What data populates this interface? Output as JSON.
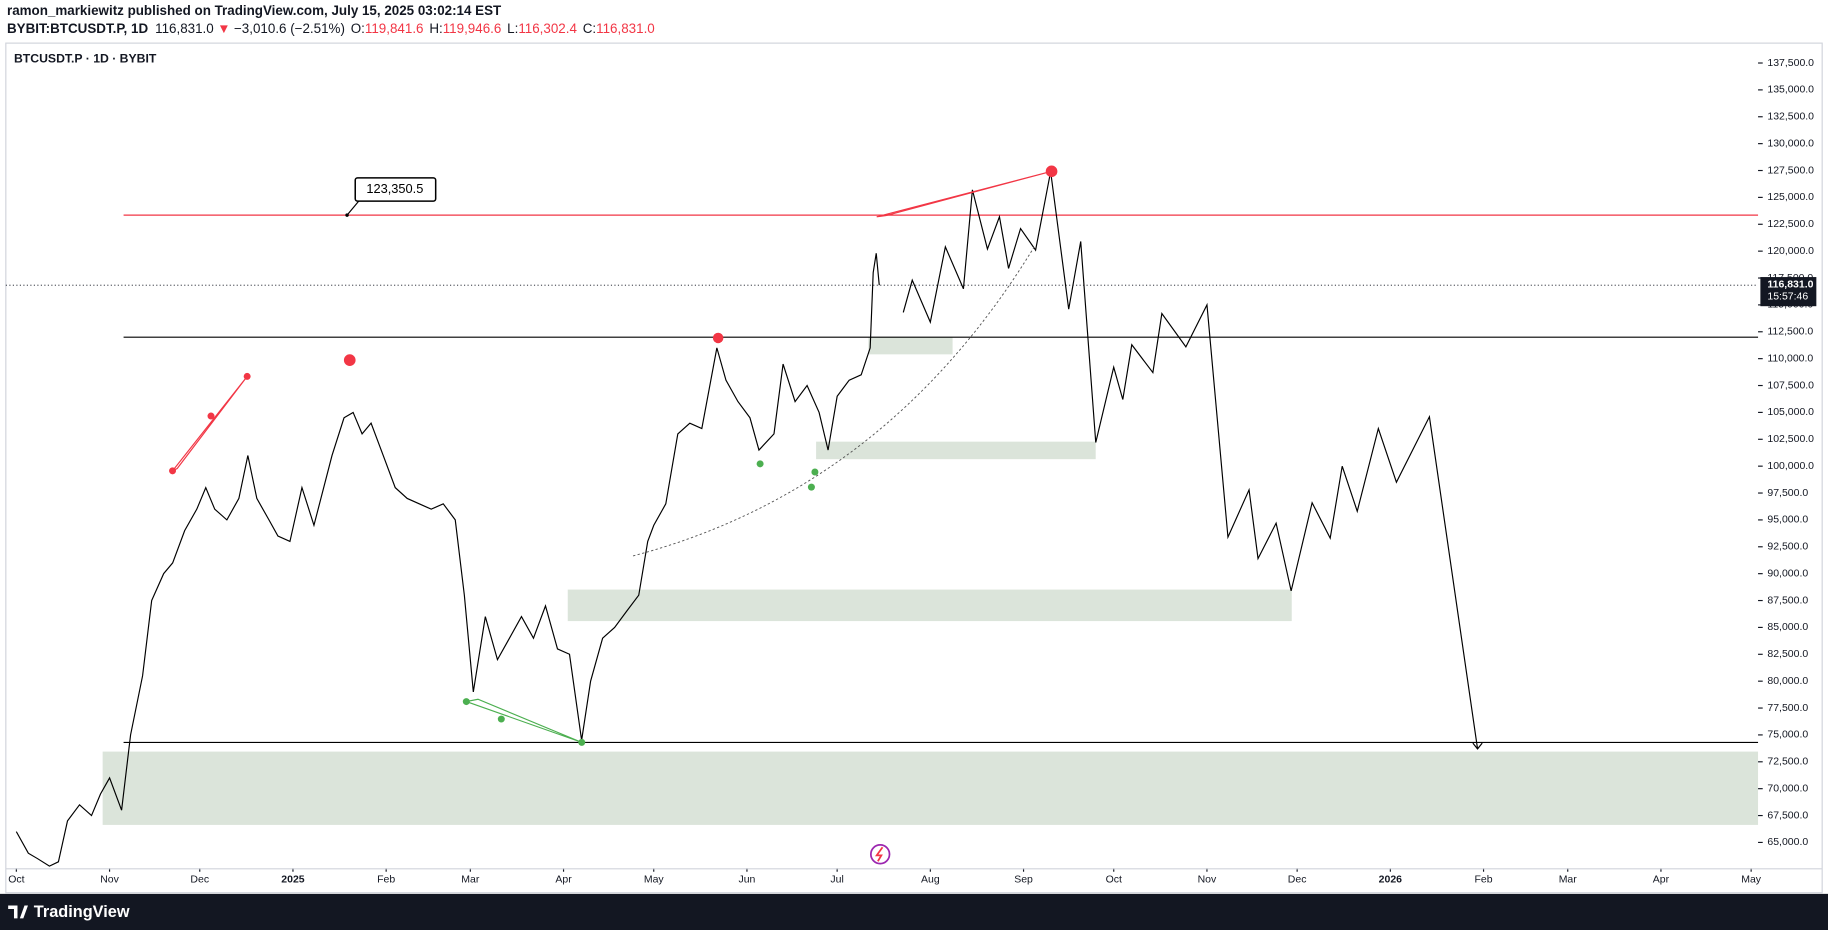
{
  "header": {
    "publisher": "ramon_markiewitz published on TradingView.com, July 15, 2025 03:02:14 EST",
    "symbol": "BYBIT:BTCUSDT.P, 1D",
    "price": "116,831.0",
    "arrow": "▼",
    "change": "−3,010.6 (−2.51%)",
    "ohlc": [
      {
        "key": "O:",
        "value": "119,841.6"
      },
      {
        "key": "H:",
        "value": "119,946.6"
      },
      {
        "key": "L:",
        "value": "116,302.4"
      },
      {
        "key": "C:",
        "value": "116,831.0"
      }
    ]
  },
  "footer": {
    "brand": "TradingView"
  },
  "chart_data": {
    "type": "line",
    "title": "BTCUSDT.P · 1D · BYBIT",
    "xlim": [
      -3.5,
      579.3
    ],
    "ylim": [
      62600,
      139350
    ],
    "xticks": [
      {
        "value": 0,
        "label": "Oct"
      },
      {
        "value": 31,
        "label": "Nov"
      },
      {
        "value": 61,
        "label": "Dec"
      },
      {
        "value": 92,
        "label": "2025"
      },
      {
        "value": 123,
        "label": "Feb"
      },
      {
        "value": 151,
        "label": "Mar"
      },
      {
        "value": 182,
        "label": "Apr"
      },
      {
        "value": 212,
        "label": "May"
      },
      {
        "value": 243,
        "label": "Jun"
      },
      {
        "value": 273,
        "label": "Jul"
      },
      {
        "value": 304,
        "label": "Aug"
      },
      {
        "value": 335,
        "label": "Sep"
      },
      {
        "value": 365,
        "label": "Oct"
      },
      {
        "value": 396,
        "label": "Nov"
      },
      {
        "value": 426,
        "label": "Dec"
      },
      {
        "value": 457,
        "label": "2026"
      },
      {
        "value": 488,
        "label": "Feb"
      },
      {
        "value": 516,
        "label": "Mar"
      },
      {
        "value": 547,
        "label": "Apr"
      },
      {
        "value": 577,
        "label": "May"
      }
    ],
    "yticks": [
      {
        "value": 65000,
        "label": "65,000.0"
      },
      {
        "value": 67500,
        "label": "67,500.0"
      },
      {
        "value": 70000,
        "label": "70,000.0"
      },
      {
        "value": 72500,
        "label": "72,500.0"
      },
      {
        "value": 75000,
        "label": "75,000.0"
      },
      {
        "value": 77500,
        "label": "77,500.0"
      },
      {
        "value": 80000,
        "label": "80,000.0"
      },
      {
        "value": 82500,
        "label": "82,500.0"
      },
      {
        "value": 85000,
        "label": "85,000.0"
      },
      {
        "value": 87500,
        "label": "87,500.0"
      },
      {
        "value": 90000,
        "label": "90,000.0"
      },
      {
        "value": 92500,
        "label": "92,500.0"
      },
      {
        "value": 95000,
        "label": "95,000.0"
      },
      {
        "value": 97500,
        "label": "97,500.0"
      },
      {
        "value": 100000,
        "label": "100,000.0"
      },
      {
        "value": 102500,
        "label": "102,500.0"
      },
      {
        "value": 105000,
        "label": "105,000.0"
      },
      {
        "value": 107500,
        "label": "107,500.0"
      },
      {
        "value": 110000,
        "label": "110,000.0"
      },
      {
        "value": 112500,
        "label": "112,500.0"
      },
      {
        "value": 115000,
        "label": "115,000.0"
      },
      {
        "value": 117500,
        "label": "117,500.0"
      },
      {
        "value": 120000,
        "label": "120,000.0"
      },
      {
        "value": 122500,
        "label": "122,500.0"
      },
      {
        "value": 125000,
        "label": "125,000.0"
      },
      {
        "value": 127500,
        "label": "127,500.0"
      },
      {
        "value": 130000,
        "label": "130,000.0"
      },
      {
        "value": 132500,
        "label": "132,500.0"
      },
      {
        "value": 135000,
        "label": "135,000.0"
      },
      {
        "value": 137500,
        "label": "137,500.0"
      }
    ],
    "series": [
      {
        "name": "price",
        "color": "#000000",
        "x": [
          0,
          4,
          7,
          11,
          14,
          17,
          21,
          25,
          28,
          31,
          35,
          38,
          42,
          45,
          49,
          52,
          56,
          60,
          63,
          66,
          70,
          74,
          77,
          80,
          84,
          87,
          91,
          95,
          99,
          105,
          109,
          112,
          115,
          118,
          122,
          126,
          130,
          134,
          138,
          142,
          146,
          149,
          152,
          156,
          160,
          164,
          168,
          172,
          176,
          180,
          184,
          188,
          191,
          195,
          199,
          203,
          207,
          210,
          212,
          216,
          220,
          224,
          228,
          233,
          236,
          240,
          244,
          247,
          252,
          255,
          259,
          263,
          267,
          270,
          273,
          277,
          281,
          284,
          285,
          286,
          287
        ],
        "values": [
          66000,
          64000,
          63500,
          62800,
          63200,
          67000,
          68500,
          67500,
          69500,
          71000,
          68000,
          75000,
          80500,
          87500,
          90000,
          91000,
          94000,
          96000,
          98000,
          96000,
          95000,
          97000,
          101000,
          97000,
          95000,
          93500,
          93000,
          98000,
          94500,
          101000,
          104500,
          105000,
          103000,
          104000,
          101000,
          98000,
          97000,
          96500,
          96000,
          96500,
          95000,
          88000,
          79000,
          86000,
          82000,
          84000,
          86000,
          84000,
          87000,
          83000,
          82500,
          74500,
          80000,
          84000,
          85000,
          86500,
          88000,
          93000,
          94500,
          96500,
          103000,
          104000,
          103500,
          111000,
          108000,
          106000,
          104500,
          101500,
          103000,
          109500,
          106000,
          107500,
          105000,
          101500,
          106500,
          108000,
          108500,
          111000,
          118000,
          119800,
          116831
        ]
      },
      {
        "name": "forecast",
        "color": "#000000",
        "x": [
          295,
          298,
          304,
          309,
          315,
          318,
          323,
          327,
          330,
          334,
          339,
          344,
          350,
          354,
          359,
          365,
          368,
          371,
          378,
          381,
          389,
          396,
          403,
          410,
          413,
          419,
          424,
          431,
          437,
          441,
          446,
          453,
          459,
          470,
          486
        ],
        "values": [
          114300,
          117300,
          113400,
          120400,
          116500,
          125700,
          120200,
          123200,
          118400,
          122100,
          120100,
          127400,
          114600,
          120900,
          102200,
          109200,
          106200,
          111300,
          108700,
          114200,
          111100,
          115000,
          93400,
          97800,
          91400,
          94700,
          88400,
          96600,
          93300,
          100000,
          95800,
          103500,
          98500,
          104600,
          73700
        ]
      }
    ],
    "hlines": [
      {
        "value": 123350.5,
        "color": "#f23645"
      },
      {
        "value": 112000,
        "color": "#000000"
      },
      {
        "value": 74300,
        "color": "#000000"
      }
    ],
    "zones": [
      {
        "x": [
          283.4,
          311.4
        ],
        "y": [
          110400,
          112000
        ]
      },
      {
        "x": [
          266,
          359
        ],
        "y": [
          100650,
          102280
        ]
      },
      {
        "x": [
          183.4,
          424.2
        ],
        "y": [
          85590,
          88520
        ]
      },
      {
        "x": [
          28.7,
          579.3
        ],
        "y": [
          66630,
          73450
        ]
      }
    ],
    "annotation": {
      "label": "123,350.5",
      "value": 123350.5,
      "x": 110
    },
    "last_price": {
      "label": "116,831.0",
      "value": 116831,
      "countdown": "15:57:46"
    }
  }
}
